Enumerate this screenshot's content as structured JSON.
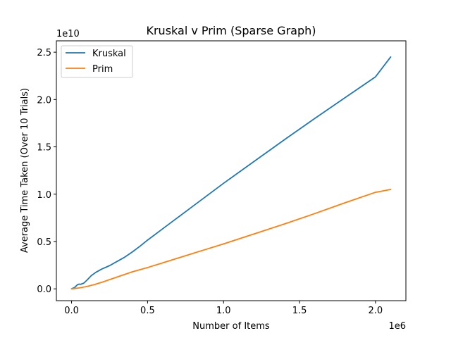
{
  "chart_data": {
    "type": "line",
    "title": "Kruskal v Prim (Sparse Graph)",
    "xlabel": "Number of Items",
    "ylabel": "Average Time Taken (Over 10 Trials)",
    "x_offset_label": "1e6",
    "y_offset_label": "1e10",
    "x_scale": 1000000,
    "y_scale": 10000000000,
    "xlim": [
      -100000,
      2200000
    ],
    "ylim": [
      -1250000000,
      26200000000
    ],
    "x_ticks": [
      0,
      500000,
      1000000,
      1500000,
      2000000
    ],
    "x_tick_labels": [
      "0.0",
      "0.5",
      "1.0",
      "1.5",
      "2.0"
    ],
    "y_ticks": [
      0,
      5000000000,
      10000000000,
      15000000000,
      20000000000,
      25000000000
    ],
    "y_tick_labels": [
      "0.0",
      "0.5",
      "1.0",
      "1.5",
      "2.0",
      "2.5"
    ],
    "grid": false,
    "legend": "upper-left",
    "series": [
      {
        "name": "Kruskal",
        "color": "#1f77b4",
        "x": [
          0,
          20000,
          40000,
          50000,
          60000,
          80000,
          100000,
          130000,
          160000,
          200000,
          250000,
          300000,
          350000,
          400000,
          450000,
          500000,
          600000,
          700000,
          800000,
          900000,
          1000000,
          1200000,
          1400000,
          1600000,
          1800000,
          2000000,
          2100000
        ],
        "y": [
          0,
          150000000,
          450000000,
          500000000,
          480000000,
          600000000,
          900000000,
          1400000000,
          1750000000,
          2100000000,
          2450000000,
          2900000000,
          3350000000,
          3900000000,
          4500000000,
          5150000000,
          6350000000,
          7550000000,
          8750000000,
          9950000000,
          11150000000,
          13450000000,
          15750000000,
          18000000000,
          20200000000,
          22400000000,
          24500000000
        ]
      },
      {
        "name": "Prim",
        "color": "#ff7f0e",
        "x": [
          0,
          50000,
          100000,
          150000,
          200000,
          300000,
          400000,
          500000,
          600000,
          700000,
          800000,
          900000,
          1000000,
          1200000,
          1400000,
          1600000,
          1800000,
          2000000,
          2100000
        ],
        "y": [
          0,
          100000000,
          250000000,
          450000000,
          700000000,
          1250000000,
          1800000000,
          2250000000,
          2750000000,
          3250000000,
          3750000000,
          4250000000,
          4750000000,
          5800000000,
          6850000000,
          7950000000,
          9100000000,
          10200000000,
          10500000000
        ]
      }
    ]
  }
}
